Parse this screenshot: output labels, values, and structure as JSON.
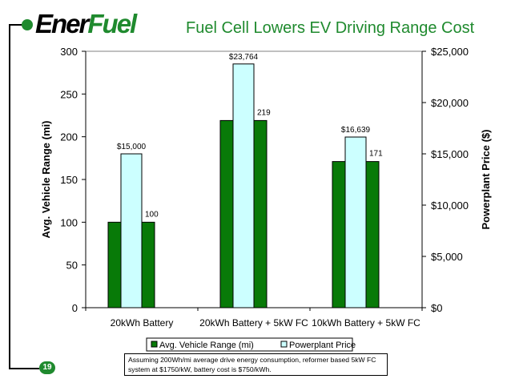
{
  "header": {
    "logo_part1": "Ener",
    "logo_part2": "Fuel",
    "title": "Fuel Cell Lowers EV Driving Range Cost"
  },
  "page_number": "19",
  "footnote": "Assuming 200Wh/mi average drive energy consumption, reformer based 5kW FC system at $1750/kW, battery cost is $750/kWh.",
  "colors": {
    "brand_green": "#1f8a2e",
    "range_bar": "#087a08",
    "price_bar": "#ccffff"
  },
  "chart_data": {
    "type": "bar",
    "categories": [
      "20kWh Battery",
      "20kWh Battery + 5kW FC",
      "10kWh Battery + 5kW FC"
    ],
    "series": [
      {
        "name": "Avg. Vehicle Range (mi)",
        "axis": "left",
        "values": [
          100,
          219,
          171
        ],
        "labels": [
          "100",
          "219",
          "171"
        ],
        "color": "#087a08"
      },
      {
        "name": "Powerplant Price",
        "axis": "right",
        "values": [
          15000,
          23764,
          16639
        ],
        "labels": [
          "$15,000",
          "$23,764",
          "$16,639"
        ],
        "color": "#ccffff"
      }
    ],
    "ylabel": "Avg. Vehicle Range (mi)",
    "ylabel_right": "Powerplant Price ($)",
    "ylim": [
      0,
      300
    ],
    "ylim_right": [
      0,
      25000
    ],
    "yticks": [
      "0",
      "50",
      "100",
      "150",
      "200",
      "250",
      "300"
    ],
    "yticks_right": [
      "$0",
      "$5,000",
      "$10,000",
      "$15,000",
      "$20,000",
      "$25,000"
    ],
    "grid": false,
    "legend_position": "bottom"
  }
}
